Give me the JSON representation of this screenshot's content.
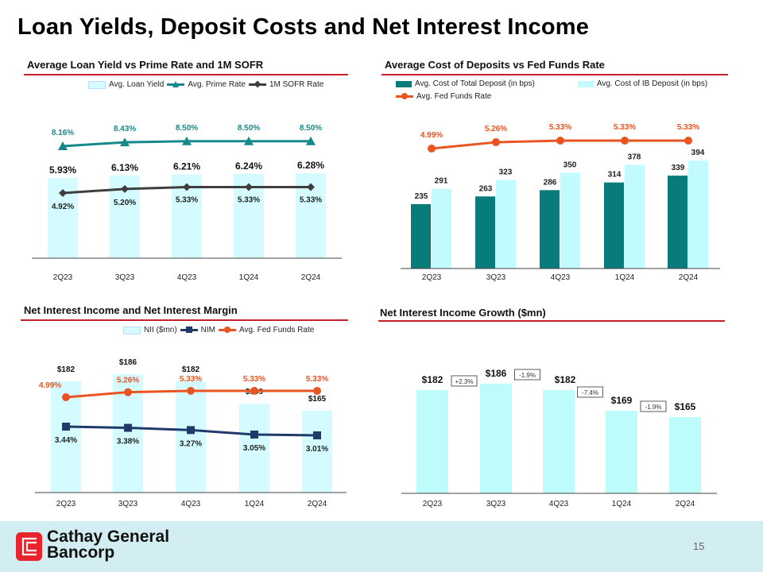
{
  "page": {
    "title": "Loan Yields, Deposit Costs and Net Interest Income",
    "page_number": "15"
  },
  "footer": {
    "company_line1": "Cathay General",
    "company_line2": "Bancorp",
    "logo_color": "#e8242c"
  },
  "colors": {
    "accent_red": "#c8202a",
    "light_bar": "#d4fbff",
    "teal": "#16898a",
    "dark": "#3f3f3f",
    "deposit_dark": "#087c7a",
    "ib_light": "#c2fbff",
    "orange": "#ea5420",
    "nii_bar": "#befcfc"
  },
  "chart_data": [
    {
      "type": "bar+line",
      "title": "Average Loan Yield vs Prime Rate and 1M SOFR",
      "categories": [
        "2Q23",
        "3Q23",
        "4Q23",
        "1Q24",
        "2Q24"
      ],
      "series": [
        {
          "name": "Avg. Loan Yield",
          "kind": "bar",
          "values": [
            5.93,
            6.13,
            6.21,
            6.24,
            6.28
          ],
          "labels": [
            "5.93%",
            "6.13%",
            "6.21%",
            "6.24%",
            "6.28%"
          ]
        },
        {
          "name": "Avg. Prime Rate",
          "kind": "line",
          "marker": "triangle",
          "values": [
            8.16,
            8.43,
            8.5,
            8.5,
            8.5
          ],
          "labels": [
            "8.16%",
            "8.43%",
            "8.50%",
            "8.50%",
            "8.50%"
          ]
        },
        {
          "name": "1M SOFR Rate",
          "kind": "line",
          "marker": "diamond",
          "values": [
            4.92,
            5.2,
            5.33,
            5.33,
            5.33
          ],
          "labels": [
            "4.92%",
            "5.20%",
            "5.33%",
            "5.33%",
            "5.33%"
          ]
        }
      ],
      "legend": "top-right",
      "grid": false
    },
    {
      "type": "bar+line",
      "title": "Average Cost of Deposits vs Fed Funds Rate",
      "categories": [
        "2Q23",
        "3Q23",
        "4Q23",
        "1Q24",
        "2Q24"
      ],
      "series": [
        {
          "name": "Avg. Cost of Total Deposit (in bps)",
          "kind": "bar",
          "values": [
            235,
            263,
            286,
            314,
            339
          ],
          "labels": [
            "235",
            "263",
            "286",
            "314",
            "339"
          ]
        },
        {
          "name": "Avg. Cost of IB Deposit (in bps)",
          "kind": "bar",
          "values": [
            291,
            323,
            350,
            378,
            394
          ],
          "labels": [
            "291",
            "323",
            "350",
            "378",
            "394"
          ]
        },
        {
          "name": "Avg. Fed Funds Rate",
          "kind": "line",
          "marker": "circle",
          "values": [
            4.99,
            5.26,
            5.33,
            5.33,
            5.33
          ],
          "labels": [
            "4.99%",
            "5.26%",
            "5.33%",
            "5.33%",
            "5.33%"
          ]
        }
      ],
      "legend": "top",
      "grid": false
    },
    {
      "type": "bar+line",
      "title": "Net Interest Income and Net Interest Margin",
      "categories": [
        "2Q23",
        "3Q23",
        "4Q23",
        "1Q24",
        "2Q24"
      ],
      "series": [
        {
          "name": "NII ($mn)",
          "kind": "bar",
          "values": [
            182,
            186,
            182,
            169,
            165
          ],
          "labels": [
            "$182",
            "$186",
            "$182",
            "$169",
            "$165"
          ]
        },
        {
          "name": "NIM",
          "kind": "line",
          "marker": "square",
          "values": [
            3.44,
            3.38,
            3.27,
            3.05,
            3.01
          ],
          "labels": [
            "3.44%",
            "3.38%",
            "3.27%",
            "3.05%",
            "3.01%"
          ]
        },
        {
          "name": "Avg. Fed Funds Rate",
          "kind": "line",
          "marker": "circle",
          "values": [
            4.99,
            5.26,
            5.33,
            5.33,
            5.33
          ],
          "labels": [
            "4.99%",
            "5.26%",
            "5.33%",
            "5.33%",
            "5.33%"
          ]
        }
      ],
      "legend": "top-right",
      "grid": false
    },
    {
      "type": "bar",
      "title": "Net Interest Income Growth ($mn)",
      "categories": [
        "2Q23",
        "3Q23",
        "4Q23",
        "1Q24",
        "2Q24"
      ],
      "values": [
        182,
        186,
        182,
        169,
        165
      ],
      "labels": [
        "$182",
        "$186",
        "$182",
        "$169",
        "$165"
      ],
      "changes": [
        "+2.3%",
        "-1.9%",
        "-7.4%",
        "-1.9%"
      ],
      "grid": false
    }
  ]
}
